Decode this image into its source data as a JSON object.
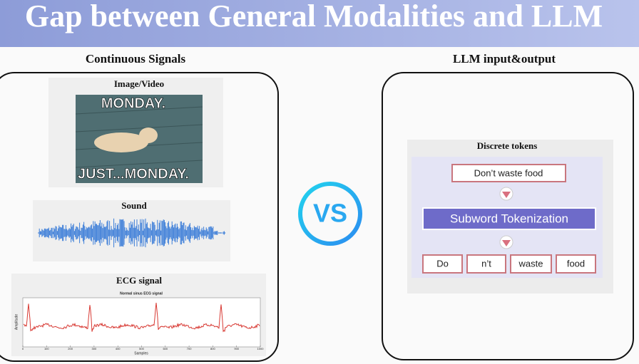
{
  "header": {
    "title": "Gap between General Modalities and LLM"
  },
  "left": {
    "heading": "Continuous Signals",
    "image": {
      "label": "Image/Video",
      "caption_top": "MONDAY.",
      "caption_bottom": "JUST...MONDAY."
    },
    "sound": {
      "label": "Sound"
    },
    "ecg": {
      "label": "ECG signal",
      "plot_title": "Normal sinus ECG signal",
      "y_label": "Amplitude",
      "x_label": "Samples",
      "x_ticks": [
        "0",
        "100",
        "200",
        "300",
        "400",
        "500",
        "600",
        "700",
        "800",
        "900",
        "1000"
      ]
    }
  },
  "center": {
    "badge": "VS"
  },
  "right": {
    "heading": "LLM input&output",
    "panel_title": "Discrete tokens",
    "input": "Don’t waste food",
    "process": "Subword Tokenization",
    "tokens": [
      "Do",
      "n’t",
      "waste",
      "food"
    ]
  }
}
